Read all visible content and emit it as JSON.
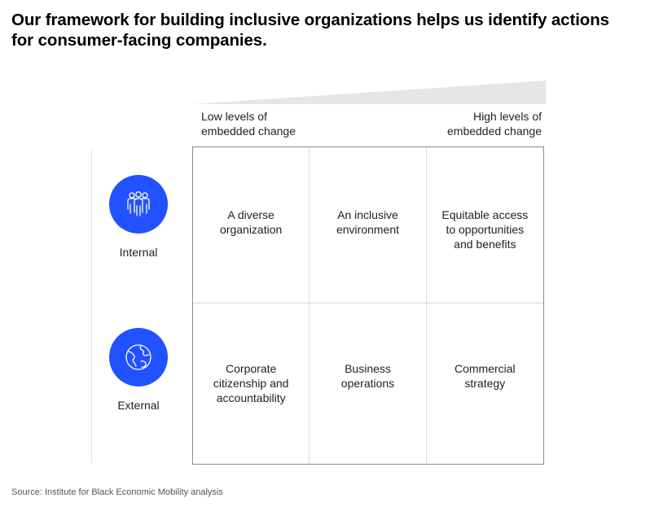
{
  "title": [
    "Our framework for building inclusive organizations helps us identify actions",
    "for consumer-facing companies."
  ],
  "axis": {
    "low": [
      "Low levels of",
      "embedded change"
    ],
    "high": [
      "High levels of",
      "embedded change"
    ],
    "gradient_color": "#e6e6e6"
  },
  "rows": [
    {
      "label": "Internal",
      "icon": "people-icon"
    },
    {
      "label": "External",
      "icon": "globe-icon"
    }
  ],
  "cells": [
    [
      [
        "A diverse",
        "organization"
      ],
      [
        "An inclusive",
        "environment"
      ],
      [
        "Equitable access",
        "to opportunities",
        "and benefits"
      ]
    ],
    [
      [
        "Corporate",
        "citizenship and",
        "accountability"
      ],
      [
        "Business",
        "operations"
      ],
      [
        "Commercial",
        "strategy"
      ]
    ]
  ],
  "source": "Source: Institute for Black Economic Mobility analysis",
  "colors": {
    "accent": "#2251ff",
    "grid_border": "#8a8a8a",
    "grid_divider": "#d9d9d9"
  }
}
